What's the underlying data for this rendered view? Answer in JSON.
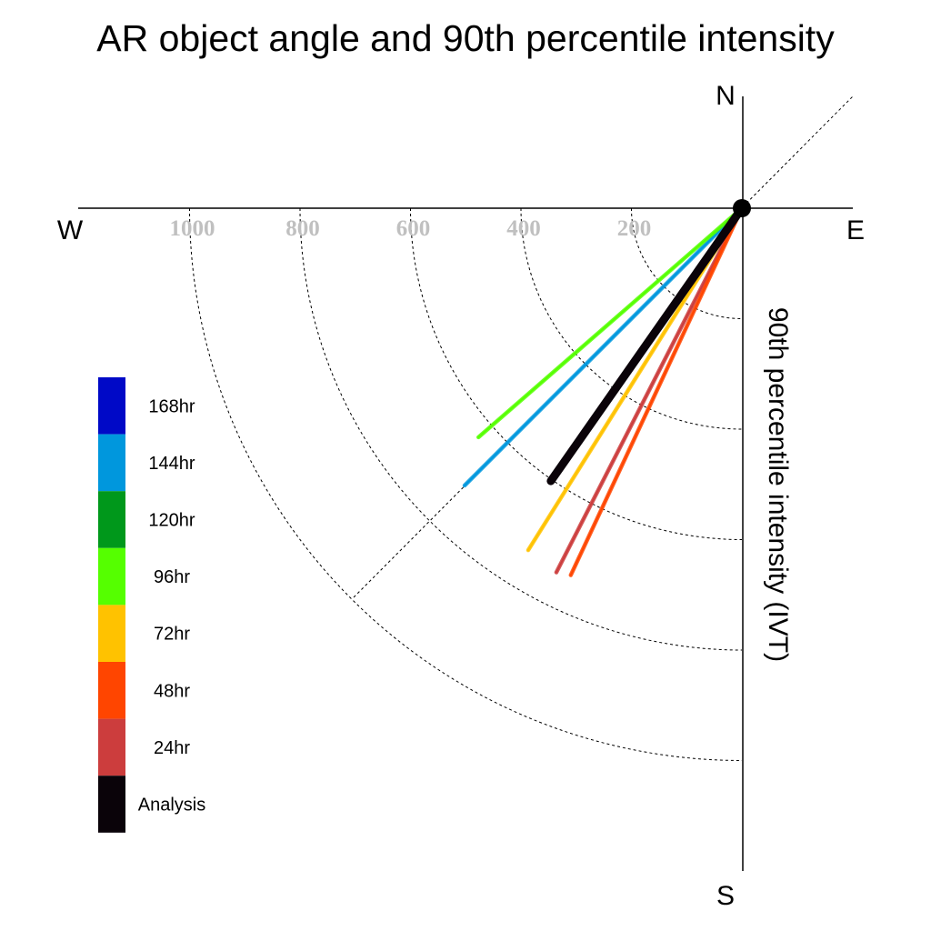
{
  "chart_data": {
    "type": "polar-vector",
    "title": "AR object angle and 90th percentile intensity",
    "radial_label": "90th percentile intensity (IVT)",
    "compass": {
      "north": "N",
      "south": "S",
      "east": "E",
      "west": "W"
    },
    "ring_ticks": [
      "200",
      "400",
      "600",
      "800",
      "1000"
    ],
    "ring_values": [
      200,
      400,
      600,
      800,
      1000
    ],
    "diagonal_reference_deg": 45,
    "series": [
      {
        "name": "168hr",
        "color": "#0009c7"
      },
      {
        "name": "144hr",
        "color": "#0097dd",
        "angle_deg": 225,
        "intensity": 710
      },
      {
        "name": "120hr",
        "color": "#00981b"
      },
      {
        "name": "96hr",
        "color": "#55ff00",
        "angle_deg": 229,
        "intensity": 632
      },
      {
        "name": "72hr",
        "color": "#ffc200",
        "angle_deg": 212,
        "intensity": 730
      },
      {
        "name": "48hr",
        "color": "#ff4500",
        "angle_deg": 205,
        "intensity": 733
      },
      {
        "name": "24hr",
        "color": "#cc3d3d",
        "angle_deg": 207,
        "intensity": 740
      },
      {
        "name": "Analysis",
        "color": "#0a0309",
        "angle_deg": 215,
        "intensity": 603
      }
    ]
  }
}
